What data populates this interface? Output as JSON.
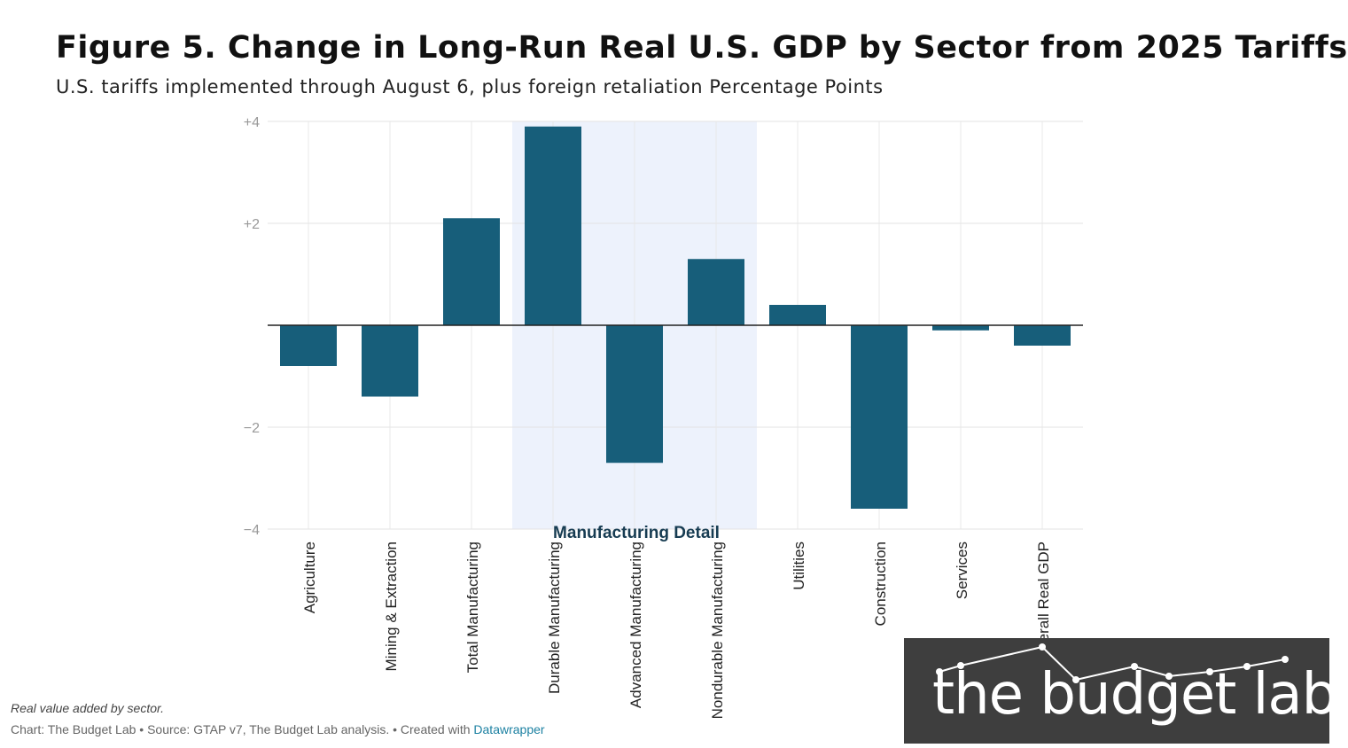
{
  "header": {
    "title": "Figure 5. Change in Long-Run Real U.S. GDP by Sector from 2025 Tariffs",
    "subtitle": "U.S. tariffs implemented through August 6, plus foreign retaliation Percentage Points"
  },
  "chart_data": {
    "type": "bar",
    "title": "Figure 5. Change in Long-Run Real U.S. GDP by Sector from 2025 Tariffs",
    "subtitle": "U.S. tariffs implemented through August 6, plus foreign retaliation Percentage Points",
    "xlabel": "",
    "ylabel": "Percentage Points",
    "ylim": [
      -4,
      4
    ],
    "yticks": [
      4,
      2,
      -2,
      -4
    ],
    "ytick_labels": [
      "+4",
      "+2",
      "−2",
      "−4"
    ],
    "grid": true,
    "bar_color": "#175e7a",
    "highlight_color": "#edf2fc",
    "categories": [
      "Agriculture",
      "Mining & Extraction",
      "Total Manufacturing",
      "Durable Manufacturing",
      "Advanced Manufacturing",
      "Nondurable Manufacturing",
      "Utilities",
      "Construction",
      "Services",
      "Overall Real GDP"
    ],
    "values": [
      -0.8,
      -1.4,
      2.1,
      3.9,
      -2.7,
      1.3,
      0.4,
      -3.6,
      -0.1,
      -0.4
    ],
    "highlight": {
      "label": "Manufacturing Detail",
      "categories": [
        "Durable Manufacturing",
        "Advanced Manufacturing",
        "Nondurable Manufacturing"
      ]
    }
  },
  "footer": {
    "note": "Real value added by sector.",
    "credits": "Chart: The Budget Lab • Source: GTAP v7, The Budget Lab analysis. • Created with",
    "credits_link": "Datawrapper"
  },
  "logo": {
    "text": "the budget lab",
    "background": "#3e3e3e"
  }
}
